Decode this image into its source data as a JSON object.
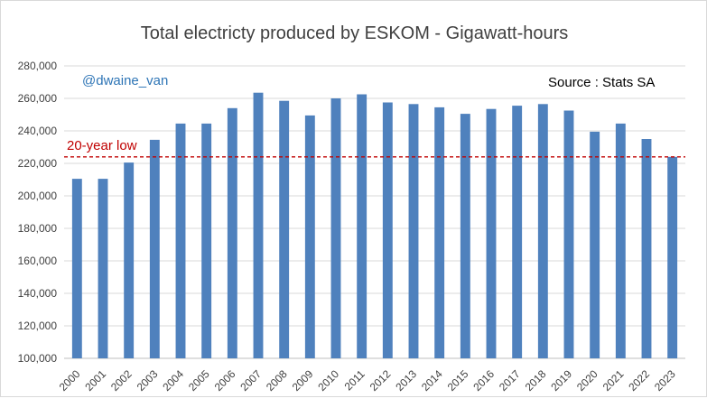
{
  "chart_data": {
    "type": "bar",
    "title": "Total electricty produced by ESKOM - Gigawatt-hours",
    "xlabel": "",
    "ylabel": "",
    "ylim": [
      100000,
      280000
    ],
    "yticks": [
      "100,000",
      "120,000",
      "140,000",
      "160,000",
      "180,000",
      "200,000",
      "220,000",
      "240,000",
      "260,000",
      "280,000"
    ],
    "categories": [
      "2000",
      "2001",
      "2002",
      "2003",
      "2004",
      "2005",
      "2006",
      "2007",
      "2008",
      "2009",
      "2010",
      "2011",
      "2012",
      "2013",
      "2014",
      "2015",
      "2016",
      "2017",
      "2018",
      "2019",
      "2020",
      "2021",
      "2022",
      "2023"
    ],
    "values": [
      210500,
      210500,
      220500,
      234500,
      244500,
      244500,
      254000,
      263500,
      258500,
      249500,
      260000,
      262500,
      257500,
      256500,
      254500,
      250500,
      253500,
      255500,
      256500,
      252500,
      239500,
      244500,
      235000,
      224000
    ],
    "bar_color": "#4f81bd",
    "grid": true,
    "reference_line": {
      "label": "20-year low",
      "value": 224000,
      "color": "#c00000"
    },
    "annotations": {
      "handle": "@dwaine_van",
      "source": "Source : Stats SA"
    }
  }
}
